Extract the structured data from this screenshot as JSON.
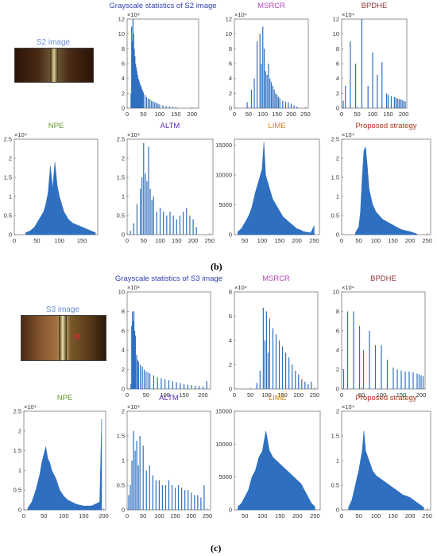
{
  "panel_labels": {
    "b": "(b)",
    "c": "(c)"
  },
  "images": {
    "s2": "S2 image",
    "s3": "S3 image"
  },
  "colors": {
    "bar": "#2e6fbf",
    "tick": "#333333",
    "axis": "#666666"
  },
  "chart_data": [
    {
      "type": "bar",
      "title": "Grayscale statistics of S2 image",
      "title_color": "#2f3fb0",
      "xlim": [
        0,
        220
      ],
      "ylim": [
        0,
        12
      ],
      "xticks": [
        0,
        50,
        100,
        150,
        200
      ],
      "yticks": [
        0,
        2,
        4,
        6,
        8,
        10,
        12
      ],
      "exponent": "×10⁴",
      "x": [
        12,
        14,
        16,
        18,
        20,
        22,
        24,
        26,
        28,
        30,
        32,
        34,
        36,
        38,
        40,
        42,
        44,
        46,
        48,
        50,
        55,
        60,
        65,
        70,
        75,
        80,
        85,
        90,
        95,
        100,
        110,
        120,
        130,
        140,
        150
      ],
      "values": [
        2,
        11,
        9,
        12,
        10,
        8,
        7,
        6,
        5.5,
        5,
        4.5,
        4,
        3.8,
        3.5,
        3.2,
        3,
        2.8,
        2.5,
        2.3,
        2.1,
        1.8,
        1.5,
        1.3,
        1.2,
        1,
        0.9,
        0.8,
        0.7,
        0.6,
        0.5,
        0.4,
        0.3,
        0.25,
        0.2,
        0.1
      ]
    },
    {
      "type": "bar",
      "title": "MSRCR",
      "title_color": "#b347b3",
      "xlim": [
        0,
        260
      ],
      "ylim": [
        0,
        12
      ],
      "xticks": [
        0,
        50,
        100,
        150,
        200,
        250
      ],
      "yticks": [
        0,
        2,
        4,
        6,
        8,
        10,
        12
      ],
      "exponent": "×10⁴",
      "x": [
        45,
        60,
        70,
        80,
        90,
        95,
        100,
        105,
        110,
        115,
        120,
        125,
        130,
        135,
        140,
        145,
        150,
        155,
        160,
        170,
        180,
        190,
        200,
        210,
        220
      ],
      "values": [
        0.8,
        2.5,
        4,
        9,
        10,
        6,
        11,
        8,
        5,
        4.5,
        6,
        4,
        3.5,
        3,
        2.5,
        2,
        1.8,
        1.5,
        1.3,
        1,
        0.9,
        0.8,
        0.6,
        0.4,
        0.2
      ]
    },
    {
      "type": "bar",
      "title": "BPDHE",
      "title_color": "#8b3a3a",
      "xlim": [
        0,
        210
      ],
      "ylim": [
        0,
        12
      ],
      "xticks": [
        0,
        50,
        100,
        150,
        200
      ],
      "yticks": [
        0,
        2,
        4,
        6,
        8,
        10,
        12
      ],
      "exponent": "×10⁴",
      "x": [
        5,
        12,
        28,
        45,
        65,
        85,
        100,
        115,
        130,
        145,
        150,
        160,
        170,
        175,
        180,
        185,
        190,
        195,
        200,
        205
      ],
      "values": [
        1,
        3,
        9,
        6,
        12,
        3,
        7.5,
        4.5,
        6.2,
        2,
        1.8,
        1.6,
        1.5,
        1.4,
        1.3,
        1.2,
        1.2,
        1.1,
        1,
        0.9
      ]
    },
    {
      "type": "area",
      "title": "NPE",
      "title_color": "#5c9a2c",
      "xlim": [
        0,
        185
      ],
      "ylim": [
        0,
        2.5
      ],
      "xticks": [
        0,
        50,
        100,
        150
      ],
      "yticks": [
        0,
        0.5,
        1,
        1.5,
        2,
        2.5
      ],
      "exponent": "×10⁴",
      "x": [
        25,
        35,
        45,
        55,
        60,
        65,
        70,
        75,
        80,
        85,
        90,
        95,
        100,
        105,
        110,
        120,
        130,
        140,
        150,
        160,
        170,
        180
      ],
      "values": [
        0.05,
        0.1,
        0.2,
        0.4,
        0.5,
        0.6,
        0.8,
        1.1,
        1.8,
        1.2,
        1.9,
        1.3,
        1.0,
        0.8,
        0.6,
        0.4,
        0.3,
        0.25,
        0.2,
        0.15,
        0.1,
        0.05
      ]
    },
    {
      "type": "bar",
      "title": "ALTM",
      "title_color": "#5c2fb0",
      "xlim": [
        0,
        260
      ],
      "ylim": [
        0,
        2.5
      ],
      "xticks": [
        0,
        50,
        100,
        150,
        200,
        250
      ],
      "yticks": [
        0,
        0.5,
        1,
        1.5,
        2,
        2.5
      ],
      "exponent": "×10⁴",
      "x": [
        10,
        20,
        30,
        40,
        45,
        50,
        55,
        60,
        65,
        70,
        75,
        80,
        90,
        100,
        110,
        120,
        130,
        140,
        150,
        160,
        170,
        180,
        190,
        200,
        210
      ],
      "values": [
        0.1,
        0.3,
        0.8,
        1.2,
        1.5,
        2.4,
        1.6,
        1.4,
        2.3,
        1.2,
        0.9,
        1.0,
        0.6,
        0.7,
        0.6,
        0.5,
        0.6,
        0.5,
        0.4,
        0.5,
        0.6,
        0.7,
        0.5,
        0.4,
        0.2
      ]
    },
    {
      "type": "area",
      "title": "LIME",
      "title_color": "#d4821a",
      "xlim": [
        20,
        265
      ],
      "ylim": [
        0,
        16000
      ],
      "xticks": [
        50,
        100,
        150,
        200,
        250
      ],
      "yticks": [
        0,
        5000,
        10000,
        15000
      ],
      "exponent": "",
      "x": [
        30,
        40,
        50,
        60,
        70,
        80,
        90,
        100,
        105,
        110,
        115,
        120,
        130,
        140,
        150,
        160,
        170,
        180,
        190,
        200,
        210,
        220,
        240,
        250
      ],
      "values": [
        500,
        1000,
        2000,
        3000,
        4500,
        7000,
        9000,
        11000,
        15500,
        10000,
        9000,
        8000,
        6000,
        5000,
        4000,
        3000,
        2500,
        2000,
        1500,
        1000,
        800,
        500,
        300,
        1500
      ]
    },
    {
      "type": "area",
      "title": "Proposed strategy",
      "title_color": "#b3331a",
      "xlim": [
        0,
        260
      ],
      "ylim": [
        0,
        2.5
      ],
      "xticks": [
        0,
        50,
        100,
        150,
        200,
        250
      ],
      "yticks": [
        0,
        0.5,
        1,
        1.5,
        2,
        2.5
      ],
      "exponent": "×10⁴",
      "x": [
        40,
        50,
        55,
        60,
        65,
        70,
        75,
        80,
        90,
        100,
        110,
        120,
        130,
        140,
        150,
        160,
        170,
        180,
        190,
        200,
        210,
        220
      ],
      "values": [
        0.05,
        0.2,
        0.6,
        1.5,
        2.2,
        2.3,
        1.8,
        1.2,
        0.8,
        0.6,
        0.5,
        0.4,
        0.35,
        0.3,
        0.25,
        0.2,
        0.15,
        0.12,
        0.1,
        0.08,
        0.05,
        0.02
      ]
    },
    {
      "type": "bar",
      "title": "Grayscale statistics of S3 image",
      "title_color": "#2f3fb0",
      "xlim": [
        0,
        220
      ],
      "ylim": [
        0,
        10
      ],
      "xticks": [
        0,
        50,
        100,
        150,
        200
      ],
      "yticks": [
        0,
        2,
        4,
        6,
        8,
        10
      ],
      "exponent": "×10⁴",
      "x": [
        10,
        12,
        14,
        16,
        18,
        20,
        22,
        25,
        28,
        30,
        35,
        40,
        45,
        50,
        55,
        60,
        70,
        80,
        90,
        100,
        110,
        120,
        130,
        140,
        150,
        160,
        170,
        180,
        190,
        200,
        210
      ],
      "values": [
        0.5,
        6.5,
        8,
        7,
        8,
        6,
        5.5,
        3.5,
        3,
        2.8,
        2.5,
        2.3,
        2,
        1.8,
        1.7,
        1.6,
        1.4,
        1.2,
        1.1,
        1,
        0.9,
        0.8,
        0.7,
        0.6,
        0.5,
        0.45,
        0.4,
        0.35,
        0.3,
        0.25,
        0.8
      ]
    },
    {
      "type": "bar",
      "title": "MSRCR",
      "title_color": "#b347b3",
      "xlim": [
        0,
        260
      ],
      "ylim": [
        0,
        8
      ],
      "xticks": [
        0,
        50,
        100,
        150,
        200,
        250
      ],
      "yticks": [
        0,
        2,
        4,
        6,
        8
      ],
      "exponent": "×10⁴",
      "x": [
        70,
        80,
        90,
        95,
        100,
        105,
        110,
        120,
        130,
        140,
        150,
        160,
        170,
        180,
        190,
        200,
        210,
        220,
        230,
        240
      ],
      "values": [
        0.5,
        1.5,
        6.7,
        4,
        6.4,
        3,
        5.8,
        5,
        4.5,
        4,
        3.5,
        3,
        2.6,
        2,
        1.5,
        1.2,
        0.8,
        0.6,
        0.4,
        0.6
      ]
    },
    {
      "type": "bar",
      "title": "BPDHE",
      "title_color": "#8b3a3a",
      "xlim": [
        0,
        210
      ],
      "ylim": [
        0,
        10
      ],
      "xticks": [
        0,
        50,
        100,
        150,
        200
      ],
      "yticks": [
        0,
        2,
        4,
        6,
        8,
        10
      ],
      "exponent": "×10⁴",
      "x": [
        5,
        15,
        30,
        45,
        55,
        70,
        85,
        100,
        115,
        130,
        140,
        150,
        160,
        170,
        180,
        190,
        195,
        200,
        205
      ],
      "values": [
        2,
        8,
        8,
        6.5,
        4,
        6,
        4.5,
        4.5,
        3,
        2.2,
        2,
        1.9,
        1.8,
        1.8,
        1.7,
        1.6,
        1.5,
        1.4,
        1.3
      ]
    },
    {
      "type": "area",
      "title": "NPE",
      "title_color": "#5c9a2c",
      "xlim": [
        0,
        205
      ],
      "ylim": [
        0,
        2.5
      ],
      "xticks": [
        0,
        50,
        100,
        150,
        200
      ],
      "yticks": [
        0,
        0.5,
        1,
        1.5,
        2,
        2.5
      ],
      "exponent": "×10⁴",
      "x": [
        10,
        20,
        30,
        40,
        45,
        50,
        55,
        60,
        65,
        70,
        80,
        90,
        100,
        110,
        120,
        130,
        140,
        150,
        160,
        170,
        180,
        190,
        195
      ],
      "values": [
        0.05,
        0.2,
        0.5,
        0.9,
        1.2,
        1.4,
        1.6,
        1.3,
        1.2,
        1.0,
        0.8,
        0.5,
        0.35,
        0.25,
        0.2,
        0.15,
        0.12,
        0.1,
        0.1,
        0.1,
        0.15,
        0.2,
        2.3
      ]
    },
    {
      "type": "bar",
      "title": "ALTM",
      "title_color": "#5c2fb0",
      "xlim": [
        0,
        260
      ],
      "ylim": [
        0,
        2
      ],
      "xticks": [
        0,
        50,
        100,
        150,
        200,
        250
      ],
      "yticks": [
        0,
        0.5,
        1,
        1.5,
        2
      ],
      "exponent": "×10⁴",
      "x": [
        5,
        10,
        15,
        20,
        25,
        30,
        35,
        40,
        50,
        60,
        70,
        80,
        90,
        100,
        110,
        120,
        130,
        140,
        150,
        160,
        170,
        180,
        190,
        200,
        210,
        220,
        230,
        240
      ],
      "values": [
        0.3,
        0.5,
        1.0,
        1.6,
        1.2,
        1.4,
        0.9,
        1.5,
        1.3,
        0.8,
        0.9,
        0.7,
        0.6,
        0.6,
        0.5,
        0.5,
        0.6,
        0.5,
        0.45,
        0.5,
        0.45,
        0.4,
        0.4,
        0.35,
        0.3,
        0.3,
        0.25,
        0.5
      ]
    },
    {
      "type": "area",
      "title": "LIME",
      "title_color": "#d4821a",
      "xlim": [
        20,
        265
      ],
      "ylim": [
        0,
        15000
      ],
      "xticks": [
        50,
        100,
        150,
        200,
        250
      ],
      "yticks": [
        0,
        5000,
        10000,
        15000
      ],
      "exponent": "",
      "x": [
        30,
        40,
        50,
        60,
        70,
        80,
        90,
        100,
        110,
        120,
        130,
        140,
        150,
        160,
        170,
        180,
        190,
        200,
        210,
        220,
        230,
        240,
        250
      ],
      "values": [
        500,
        1000,
        2000,
        3000,
        5000,
        6000,
        8000,
        9000,
        12000,
        9000,
        8000,
        7500,
        7000,
        6500,
        6000,
        5500,
        5000,
        4500,
        4000,
        3000,
        2000,
        1000,
        500
      ]
    },
    {
      "type": "area",
      "title": "Proposed strategy",
      "title_color": "#b3331a",
      "xlim": [
        0,
        260
      ],
      "ylim": [
        0,
        2
      ],
      "xticks": [
        0,
        50,
        100,
        150,
        200,
        250
      ],
      "yticks": [
        0,
        0.5,
        1,
        1.5,
        2
      ],
      "exponent": "×10⁴",
      "x": [
        20,
        30,
        40,
        50,
        55,
        60,
        65,
        70,
        80,
        90,
        100,
        110,
        120,
        130,
        140,
        150,
        160,
        170,
        180,
        190,
        200,
        210,
        220,
        230,
        240
      ],
      "values": [
        0.05,
        0.2,
        0.5,
        0.8,
        1.0,
        1.2,
        1.6,
        1.2,
        1.0,
        0.8,
        0.7,
        0.65,
        0.6,
        0.55,
        0.5,
        0.45,
        0.4,
        0.35,
        0.3,
        0.28,
        0.25,
        0.2,
        0.15,
        0.1,
        0.05
      ]
    }
  ]
}
